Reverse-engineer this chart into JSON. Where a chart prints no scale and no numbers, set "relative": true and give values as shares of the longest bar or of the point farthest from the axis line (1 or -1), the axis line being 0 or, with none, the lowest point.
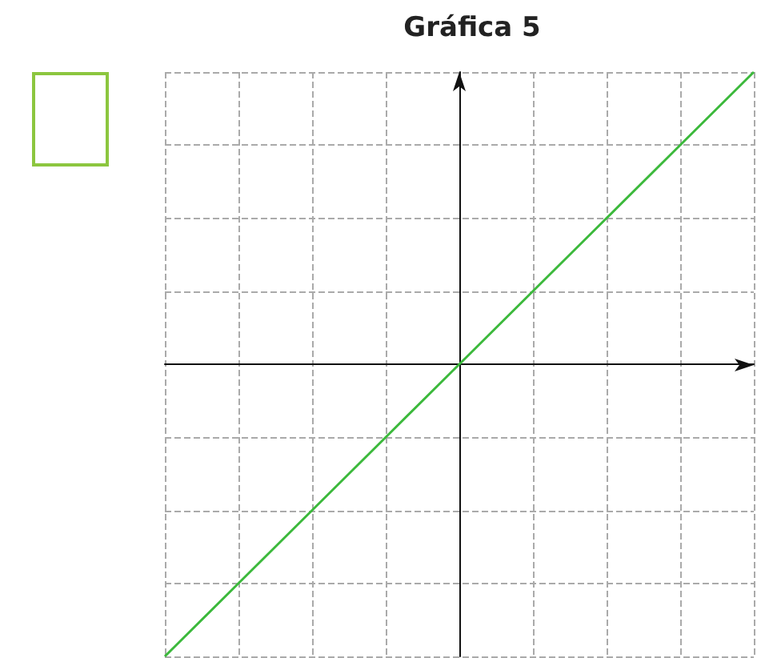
{
  "chart_data": {
    "type": "line",
    "title": "Gráfica 5",
    "relative": true,
    "categories": [
      null,
      null,
      null,
      null,
      null,
      null,
      null,
      null,
      null
    ],
    "series": [
      {
        "color": "#3cb93c",
        "values": [
          -1,
          -0.75,
          -0.5,
          -0.25,
          0,
          0.25,
          0.5,
          0.75,
          1
        ]
      }
    ],
    "grid": true,
    "marker": "none"
  }
}
